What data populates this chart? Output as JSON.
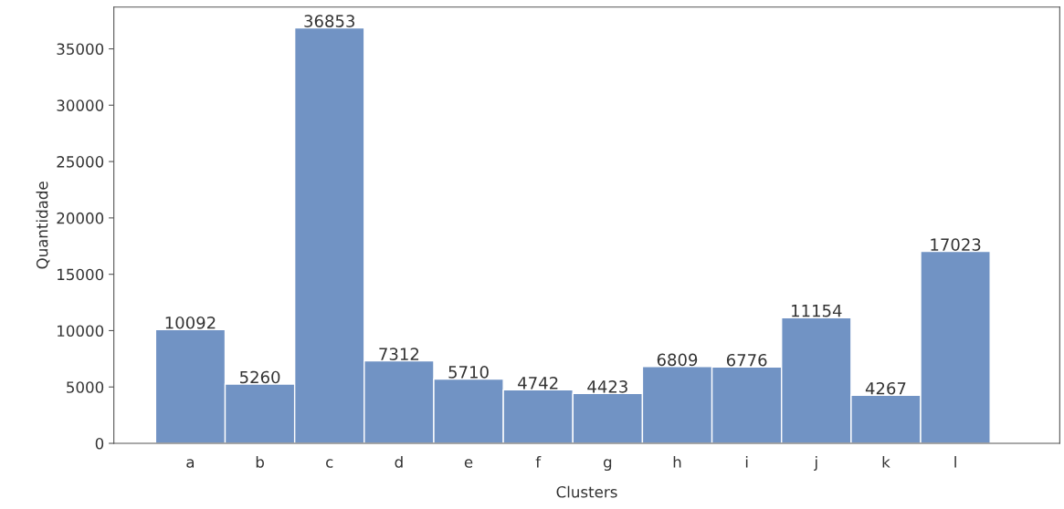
{
  "chart_data": {
    "type": "bar",
    "xlabel": "Clusters",
    "ylabel": "Quantidade",
    "categories": [
      "a",
      "b",
      "c",
      "d",
      "e",
      "f",
      "g",
      "h",
      "i",
      "j",
      "k",
      "l"
    ],
    "values": [
      10092,
      5260,
      36853,
      7312,
      5710,
      4742,
      4423,
      6809,
      6776,
      11154,
      4267,
      17023
    ],
    "color": "#7193c4",
    "ylim": [
      0,
      38700
    ],
    "yticks": [
      0,
      5000,
      10000,
      15000,
      20000,
      25000,
      30000,
      35000
    ],
    "data_labels": true,
    "grid": false,
    "legend": false
  }
}
